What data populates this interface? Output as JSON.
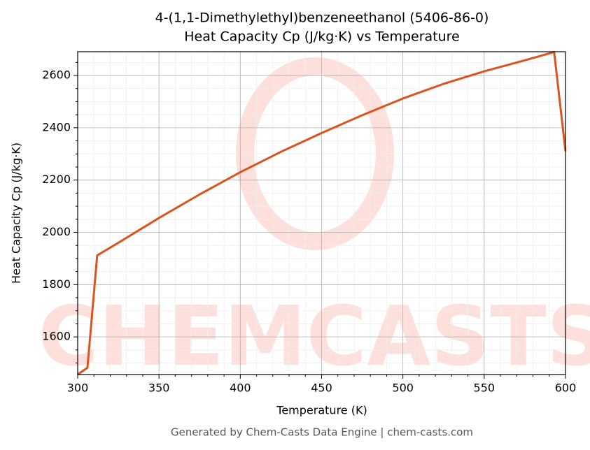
{
  "chart_data": {
    "type": "line",
    "title": "4-(1,1-Dimethylethyl)benzeneethanol (5406-86-0)",
    "subtitle": "Heat Capacity Cp (J/kg·K) vs Temperature",
    "x_label": "Temperature (K)",
    "y_label": "Heat Capacity Cp (J/kg·K)",
    "footer": "Generated by Chem-Casts Data Engine | chem-casts.com",
    "watermark": "CHEMCASTS",
    "x": [
      300,
      306,
      312,
      325,
      350,
      375,
      400,
      425,
      450,
      475,
      500,
      525,
      550,
      575,
      593,
      600
    ],
    "series": [
      {
        "name": "Cp",
        "color": "#d9541e",
        "values": [
          1456,
          1482,
          1912,
          1960,
          2055,
          2145,
          2230,
          2308,
          2380,
          2448,
          2512,
          2568,
          2616,
          2658,
          2690,
          2310
        ]
      }
    ],
    "xlim": [
      300,
      600
    ],
    "ylim": [
      1456,
      2691
    ],
    "xticks": [
      300,
      350,
      400,
      450,
      500,
      550,
      600
    ],
    "yticks": [
      1600,
      1800,
      2000,
      2200,
      2400,
      2600
    ],
    "xminorticks": [
      310,
      320,
      330,
      340,
      360,
      370,
      380,
      390,
      410,
      420,
      430,
      440,
      460,
      470,
      480,
      490,
      510,
      520,
      530,
      540,
      560,
      570,
      580,
      590
    ],
    "yminorticks": [
      1500,
      1550,
      1650,
      1700,
      1750,
      1850,
      1900,
      1950,
      2050,
      2100,
      2150,
      2250,
      2300,
      2350,
      2450,
      2500,
      2550,
      2650
    ],
    "grid": true
  }
}
